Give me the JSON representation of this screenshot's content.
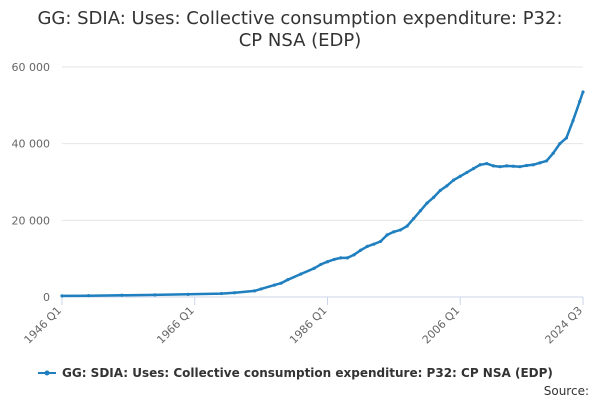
{
  "chart_data": {
    "type": "line",
    "title_lines": [
      "GG: SDIA: Uses: Collective consumption expenditure: P32:",
      "CP NSA (EDP)"
    ],
    "x_tick_labels": [
      "1946 Q1",
      "1966 Q1",
      "1986 Q1",
      "2006 Q1",
      "2024 Q3"
    ],
    "x_ticks": [
      1946.0,
      1966.0,
      1986.0,
      2006.0,
      2024.5
    ],
    "xlim": [
      1946.0,
      2024.5
    ],
    "y_ticks": [
      0,
      20000,
      40000,
      60000
    ],
    "y_tick_labels": [
      "0",
      "20 000",
      "40 000",
      "60 000"
    ],
    "ylim": [
      0,
      60000
    ],
    "grid": true,
    "legend_position": "bottom",
    "series": [
      {
        "name": "GG: SDIA: Uses: Collective consumption expenditure: P32: CP NSA (EDP)",
        "color": "#1f7fbf",
        "x": [
          1946,
          1950,
          1955,
          1960,
          1965,
          1970,
          1972,
          1975,
          1976,
          1978,
          1979,
          1980,
          1982,
          1984,
          1985,
          1986,
          1987,
          1988,
          1989,
          1990,
          1991,
          1992,
          1993,
          1994,
          1995,
          1996,
          1997,
          1998,
          1999,
          2000,
          2001,
          2002,
          2003,
          2004,
          2005,
          2006,
          2007,
          2008,
          2009,
          2010,
          2011,
          2012,
          2013,
          2014,
          2015,
          2016,
          2017,
          2018,
          2019,
          2020,
          2021,
          2022,
          2023,
          2024,
          2024.5
        ],
        "y": [
          300,
          350,
          450,
          550,
          700,
          900,
          1100,
          1600,
          2100,
          3100,
          3600,
          4500,
          6000,
          7500,
          8500,
          9200,
          9800,
          10200,
          10200,
          11000,
          12200,
          13200,
          13800,
          14500,
          16200,
          17000,
          17500,
          18500,
          20500,
          22500,
          24500,
          26000,
          27800,
          29000,
          30500,
          31500,
          32500,
          33500,
          34500,
          34800,
          34200,
          34000,
          34200,
          34100,
          34000,
          34300,
          34500,
          35000,
          35500,
          37500,
          40000,
          41500,
          46000,
          51000,
          53500
        ]
      }
    ]
  },
  "legend": {
    "label": "GG: SDIA: Uses: Collective consumption expenditure: P32: CP NSA (EDP)"
  },
  "source": {
    "label": "Source:"
  }
}
